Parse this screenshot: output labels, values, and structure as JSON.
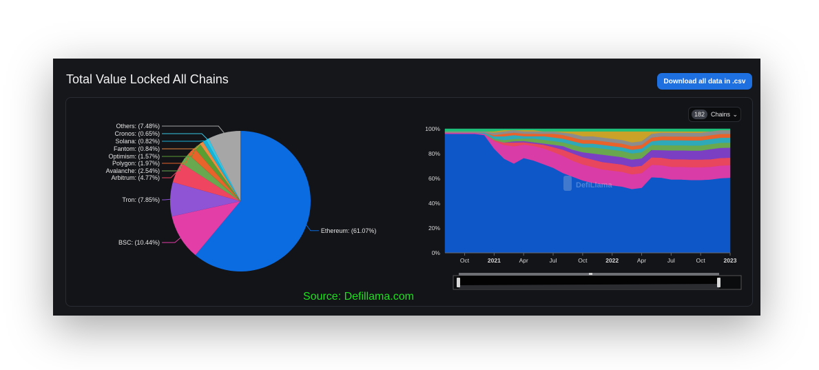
{
  "header": {
    "title": "Total Value Locked All Chains",
    "download_label": "Download all data in .csv"
  },
  "selector": {
    "count": "182",
    "label": "Chains"
  },
  "source": "Source: Defillama.com",
  "watermark": "DefiLlama",
  "chart_data": [
    {
      "type": "pie",
      "slices": [
        {
          "label": "Ethereum: (61.07%)",
          "name": "Ethereum",
          "value": 61.07,
          "color": "#0b6be0"
        },
        {
          "label": "BSC: (10.44%)",
          "name": "BSC",
          "value": 10.44,
          "color": "#e33da8"
        },
        {
          "label": "Tron: (7.85%)",
          "name": "Tron",
          "value": 7.85,
          "color": "#8f53d6"
        },
        {
          "label": "Arbitrum: (4.77%)",
          "name": "Arbitrum",
          "value": 4.77,
          "color": "#ef4560"
        },
        {
          "label": "Avalanche: (2.54%)",
          "name": "Avalanche",
          "value": 2.54,
          "color": "#6aa84f"
        },
        {
          "label": "Polygon: (1.97%)",
          "name": "Polygon",
          "value": 1.97,
          "color": "#e8622c"
        },
        {
          "label": "Optimism: (1.57%)",
          "name": "Optimism",
          "value": 1.57,
          "color": "#5a9e32"
        },
        {
          "label": "Fantom: (0.84%)",
          "name": "Fantom",
          "value": 0.84,
          "color": "#ef8a3e"
        },
        {
          "label": "Solana: (0.82%)",
          "name": "Solana",
          "value": 0.82,
          "color": "#17b3d6"
        },
        {
          "label": "Cronos: (0.65%)",
          "name": "Cronos",
          "value": 0.65,
          "color": "#34c7e6"
        },
        {
          "label": "Others: (7.48%)",
          "name": "Others",
          "value": 7.48,
          "color": "#a6a6a6"
        }
      ]
    },
    {
      "type": "area",
      "stacked_percent": true,
      "x_ticks": [
        {
          "label": "Oct",
          "bold": false
        },
        {
          "label": "2021",
          "bold": true
        },
        {
          "label": "Apr",
          "bold": false
        },
        {
          "label": "Jul",
          "bold": false
        },
        {
          "label": "Oct",
          "bold": false
        },
        {
          "label": "2022",
          "bold": true
        },
        {
          "label": "Apr",
          "bold": false
        },
        {
          "label": "Jul",
          "bold": false
        },
        {
          "label": "Oct",
          "bold": false
        },
        {
          "label": "2023",
          "bold": true
        }
      ],
      "y_ticks": [
        "0%",
        "20%",
        "40%",
        "60%",
        "80%",
        "100%"
      ],
      "ylim": [
        0,
        100
      ],
      "x_months": [
        0,
        1,
        2,
        3,
        4,
        5,
        6,
        7,
        8,
        9,
        10,
        11,
        12,
        13,
        14,
        15,
        16,
        17,
        18,
        19,
        20,
        21,
        22,
        23,
        24,
        25,
        26,
        27,
        28,
        29
      ],
      "x_tick_months": [
        2,
        5,
        8,
        11,
        14,
        17,
        20,
        23,
        26,
        29
      ],
      "series": [
        {
          "color": "#0d57c8",
          "values": [
            96,
            96,
            96,
            96,
            95,
            84,
            76,
            72,
            78,
            76,
            73,
            70,
            65,
            62,
            59,
            57,
            56,
            55,
            54,
            52,
            53,
            61,
            60,
            58,
            58,
            57,
            57,
            58,
            59,
            60
          ]
        },
        {
          "color": "#d93ca6",
          "values": [
            1,
            1,
            1,
            1,
            1,
            6,
            11,
            14,
            11,
            12,
            13,
            13,
            14,
            13,
            13,
            13,
            12,
            12,
            12,
            12,
            12,
            10,
            10,
            10,
            10,
            10,
            10,
            10,
            10,
            10
          ]
        },
        {
          "color": "#e8465f",
          "values": [
            0,
            0,
            0,
            0,
            0,
            1,
            2,
            3,
            2,
            2,
            3,
            4,
            5,
            6,
            6,
            6,
            6,
            6,
            6,
            6,
            6,
            6,
            6,
            6,
            6,
            6,
            6,
            6,
            6,
            6
          ]
        },
        {
          "color": "#7a3fc2",
          "values": [
            0,
            0,
            0,
            0,
            0,
            0,
            0,
            1,
            1,
            1,
            1,
            2,
            3,
            3,
            4,
            5,
            6,
            6,
            6,
            6,
            6,
            6,
            6,
            7,
            7,
            7,
            7,
            8,
            8,
            8
          ]
        },
        {
          "color": "#6aa84f",
          "values": [
            0,
            0,
            0,
            0,
            0,
            1,
            2,
            2,
            2,
            3,
            3,
            3,
            3,
            4,
            4,
            5,
            5,
            5,
            5,
            5,
            5,
            4,
            4,
            4,
            4,
            4,
            4,
            4,
            4,
            4
          ]
        },
        {
          "color": "#2fa9b8",
          "values": [
            0,
            0,
            0,
            0,
            1,
            2,
            3,
            3,
            2,
            2,
            3,
            3,
            3,
            3,
            3,
            3,
            3,
            3,
            3,
            3,
            3,
            3,
            4,
            4,
            4,
            4,
            4,
            4,
            4,
            4
          ]
        },
        {
          "color": "#e8622c",
          "values": [
            0,
            0,
            0,
            0,
            0,
            1,
            2,
            2,
            2,
            2,
            2,
            3,
            3,
            3,
            3,
            3,
            3,
            3,
            3,
            3,
            3,
            3,
            3,
            3,
            3,
            3,
            3,
            3,
            3,
            3
          ]
        },
        {
          "color": "#8c8c8c",
          "values": [
            1,
            1,
            1,
            1,
            1,
            2,
            2,
            2,
            2,
            2,
            2,
            2,
            2,
            3,
            3,
            3,
            3,
            3,
            3,
            3,
            3,
            3,
            3,
            3,
            3,
            3,
            3,
            3,
            3,
            3
          ]
        },
        {
          "color": "#c9a227",
          "values": [
            0,
            0,
            0,
            0,
            0,
            1,
            1,
            0,
            1,
            1,
            0,
            0,
            1,
            2,
            4,
            4,
            5,
            6,
            7,
            9,
            8,
            2,
            1,
            1,
            1,
            1,
            1,
            0,
            0,
            0
          ]
        },
        {
          "color": "#1fbf7a",
          "values": [
            2,
            2,
            2,
            2,
            2,
            2,
            1,
            1,
            1,
            1,
            2,
            2,
            2,
            2,
            2,
            2,
            2,
            2,
            2,
            2,
            2,
            2,
            2,
            2,
            2,
            2,
            2,
            2,
            1,
            1
          ]
        }
      ]
    }
  ]
}
